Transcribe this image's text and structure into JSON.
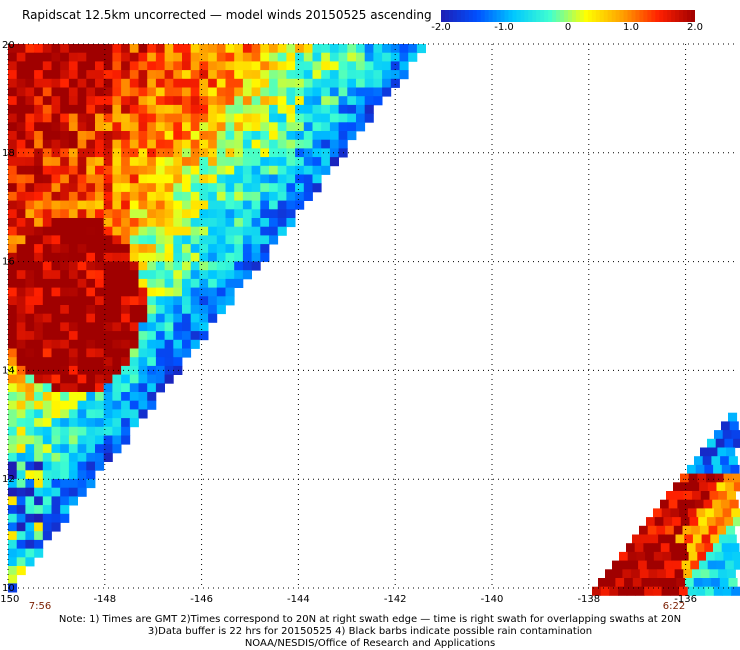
{
  "title": "Rapidscat 12.5km uncorrected — model winds 20150525 ascending",
  "colorbar": {
    "labels": [
      "-2.0",
      "-1.0",
      "0",
      "1.0",
      "2.0"
    ],
    "values": [
      -2.0,
      -1.0,
      0,
      1.0,
      2.0
    ],
    "min": -2.0,
    "max": 2.0,
    "colors": [
      "#1e1eb4",
      "#0050ff",
      "#00c8ff",
      "#40ffd0",
      "#ffff00",
      "#ffa000",
      "#ff2000",
      "#a00000"
    ]
  },
  "map": {
    "lon_range": [
      -150,
      -135
    ],
    "lat_range": [
      10,
      20
    ],
    "x_ticks": [
      "-150",
      "-148",
      "-146",
      "-144",
      "-142",
      "-140",
      "-138",
      "-136"
    ],
    "x_tick_values": [
      -150,
      -148,
      -146,
      -144,
      -142,
      -140,
      -138,
      -136
    ],
    "y_ticks": [
      "20",
      "18",
      "16",
      "14",
      "12",
      "10"
    ],
    "y_tick_values": [
      20,
      18,
      16,
      14,
      12,
      10
    ],
    "grid": "dotted",
    "swath_left_time": "7:56",
    "swath_right_time": "6:22"
  },
  "notes": [
    "Note: 1) Times are GMT 2)Times correspond to 20N at right swath edge — time is right swath for overlapping swaths at 20N",
    "3)Data buffer is 22 hrs for 20150525 4) Black barbs indicate possible rain contamination",
    "NOAA/NESDIS/Office of Research and Applications"
  ]
}
